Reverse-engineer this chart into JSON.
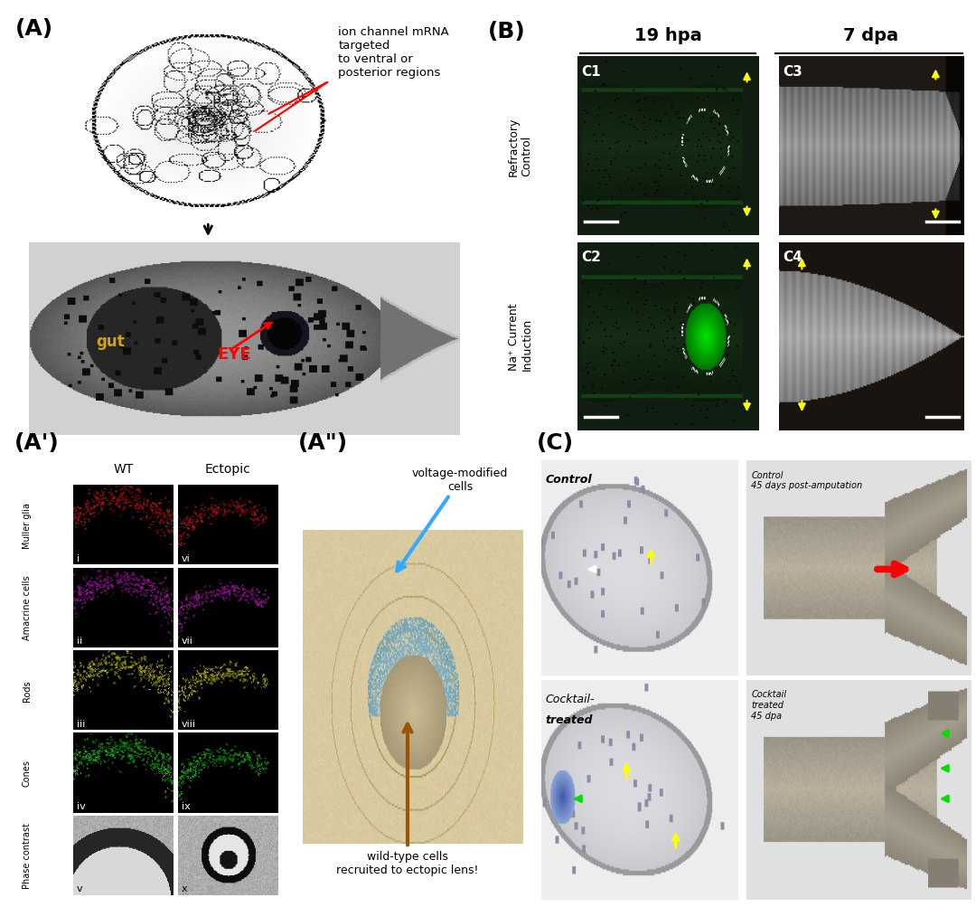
{
  "panel_A_label": "(A)",
  "panel_A_annotation": "ion channel mRNA\ntargeted\nto ventral or\nposterior regions",
  "panel_B_label": "(B)",
  "panel_B_col_labels": [
    "19 hpa",
    "7 dpa"
  ],
  "panel_B_row_labels": [
    "Refractory\nControl",
    "Na⁺ Current\nInduction"
  ],
  "panel_B_sublabels": [
    "C1",
    "C2",
    "C3",
    "C4"
  ],
  "panel_Ap_label": "(A')",
  "panel_Ap_col_labels": [
    "WT",
    "Ectopic"
  ],
  "panel_Ap_row_labels": [
    "Muller glia",
    "Amacrine cells",
    "Rods",
    "Cones",
    "Phase contrast"
  ],
  "panel_Ap_sublabels": [
    "i",
    "ii",
    "iii",
    "iv",
    "v",
    "vi",
    "vii",
    "viii",
    "ix",
    "x"
  ],
  "panel_App_label": "(A\")",
  "panel_App_annotations": [
    "voltage-modified\ncells",
    "wild-type cells\nrecruited to ectopic lens!"
  ],
  "panel_C_label": "(C)",
  "panel_C_labels": [
    "Control",
    "Cocktail-\ntreated",
    "Control\n45 days post-amputation",
    "Cocktail\ntreated\n45 dpa"
  ],
  "bg_color": "#ffffff",
  "label_fontsize": 18
}
